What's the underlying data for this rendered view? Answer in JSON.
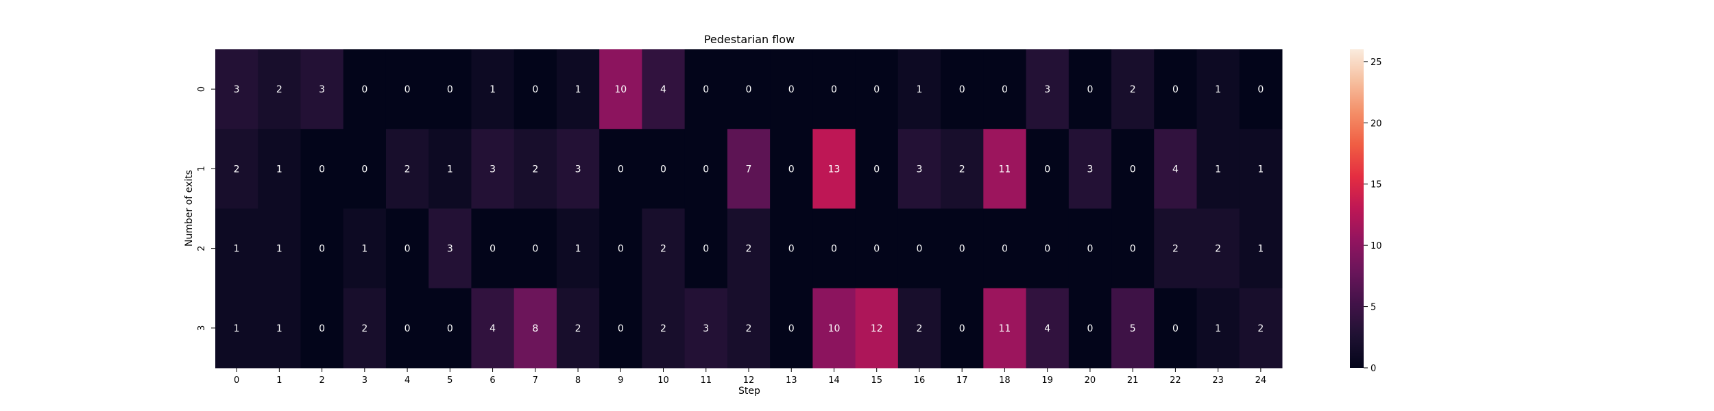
{
  "chart_data": {
    "type": "heatmap",
    "title": "Pedestarian flow",
    "xlabel": "Step",
    "ylabel": "Number of exits",
    "x_categories": [
      "0",
      "1",
      "2",
      "3",
      "4",
      "5",
      "6",
      "7",
      "8",
      "9",
      "10",
      "11",
      "12",
      "13",
      "14",
      "15",
      "16",
      "17",
      "18",
      "19",
      "20",
      "21",
      "22",
      "23",
      "24"
    ],
    "y_categories": [
      "0",
      "1",
      "2",
      "3"
    ],
    "values": [
      [
        3,
        2,
        3,
        0,
        0,
        0,
        1,
        0,
        1,
        10,
        4,
        0,
        0,
        0,
        0,
        0,
        1,
        0,
        0,
        3,
        0,
        2,
        0,
        1,
        0
      ],
      [
        2,
        1,
        0,
        0,
        2,
        1,
        3,
        2,
        3,
        0,
        0,
        0,
        7,
        0,
        13,
        0,
        3,
        2,
        11,
        0,
        3,
        0,
        4,
        1,
        1
      ],
      [
        1,
        1,
        0,
        1,
        0,
        3,
        0,
        0,
        1,
        0,
        2,
        0,
        2,
        0,
        0,
        0,
        0,
        0,
        0,
        0,
        0,
        0,
        2,
        2,
        1
      ],
      [
        1,
        1,
        0,
        2,
        0,
        0,
        4,
        8,
        2,
        0,
        2,
        3,
        2,
        0,
        10,
        12,
        2,
        0,
        11,
        4,
        0,
        5,
        0,
        1,
        2
      ]
    ],
    "colorbar": {
      "colormap": "rocket",
      "vmin": 0,
      "vmax": 26,
      "ticks": [
        0,
        5,
        10,
        15,
        20,
        25
      ]
    }
  }
}
